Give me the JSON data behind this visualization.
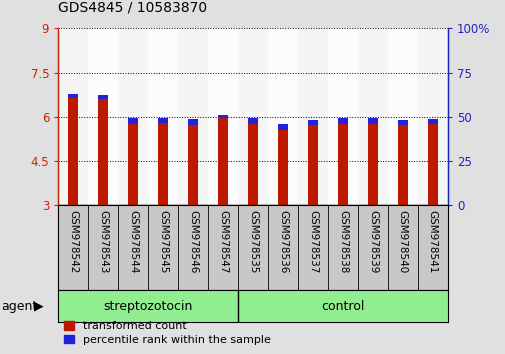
{
  "title": "GDS4845 / 10583870",
  "categories": [
    "GSM978542",
    "GSM978543",
    "GSM978544",
    "GSM978545",
    "GSM978546",
    "GSM978547",
    "GSM978535",
    "GSM978536",
    "GSM978537",
    "GSM978538",
    "GSM978539",
    "GSM978540",
    "GSM978541"
  ],
  "red_top": [
    6.65,
    6.6,
    5.75,
    5.78,
    5.72,
    5.95,
    5.76,
    5.55,
    5.72,
    5.76,
    5.76,
    5.72,
    5.76
  ],
  "blue_add": [
    0.12,
    0.15,
    0.2,
    0.18,
    0.2,
    0.12,
    0.2,
    0.2,
    0.18,
    0.2,
    0.2,
    0.18,
    0.15
  ],
  "baseline": 3.0,
  "ymin": 3.0,
  "ymax": 9.0,
  "yticks_left": [
    3,
    4.5,
    6,
    7.5,
    9
  ],
  "yticks_right": [
    0,
    25,
    50,
    75,
    100
  ],
  "red_color": "#bb1a00",
  "blue_color": "#2222dd",
  "bar_width": 0.35,
  "group1_label": "streptozotocin",
  "group2_label": "control",
  "agent_label": "agent",
  "legend1": "transformed count",
  "legend2": "percentile rank within the sample",
  "fig_bg": "#e0e0e0",
  "plot_bg": "#ffffff",
  "group_bg": "#90ee90",
  "label_bg": "#c8c8c8",
  "left_axis_color": "#cc2200",
  "right_axis_color": "#2222bb",
  "title_fontsize": 10,
  "tick_fontsize": 8.5,
  "label_fontsize": 7.5,
  "group_fontsize": 9
}
